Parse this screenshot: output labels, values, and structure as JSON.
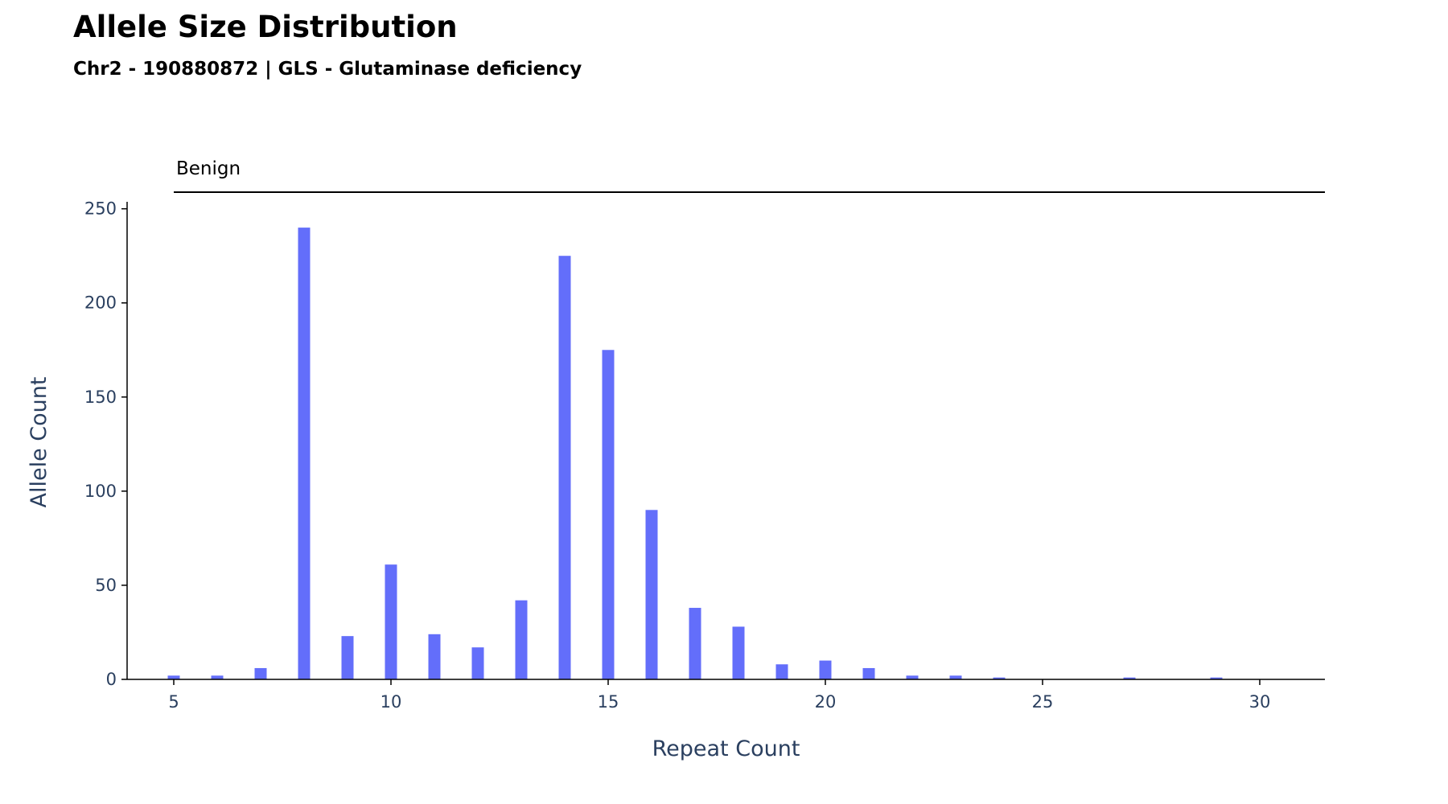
{
  "header": {
    "title": "Allele Size Distribution",
    "subtitle": "Chr2 - 190880872 | GLS - Glutaminase deficiency"
  },
  "chart_data": {
    "type": "bar",
    "title": "Allele Size Distribution",
    "subtitle": "Chr2 - 190880872 | GLS - Glutaminase deficiency",
    "xlabel": "Repeat Count",
    "ylabel": "Allele Count",
    "x": [
      5,
      6,
      7,
      8,
      9,
      10,
      11,
      12,
      13,
      14,
      15,
      16,
      17,
      18,
      19,
      20,
      21,
      22,
      23,
      24,
      27,
      29
    ],
    "values": [
      2,
      2,
      6,
      240,
      23,
      61,
      24,
      17,
      42,
      225,
      175,
      90,
      38,
      28,
      8,
      10,
      6,
      2,
      2,
      1,
      1,
      1
    ],
    "xlim": [
      4,
      31.5
    ],
    "ylim": [
      0,
      252
    ],
    "x_ticks": [
      5,
      10,
      15,
      20,
      25,
      30
    ],
    "y_ticks": [
      0,
      50,
      100,
      150,
      200,
      250
    ],
    "bar_color": "#636efa",
    "grid": false,
    "zone": {
      "label": "Benign",
      "x_start": 5,
      "x_end": 31.5
    }
  }
}
